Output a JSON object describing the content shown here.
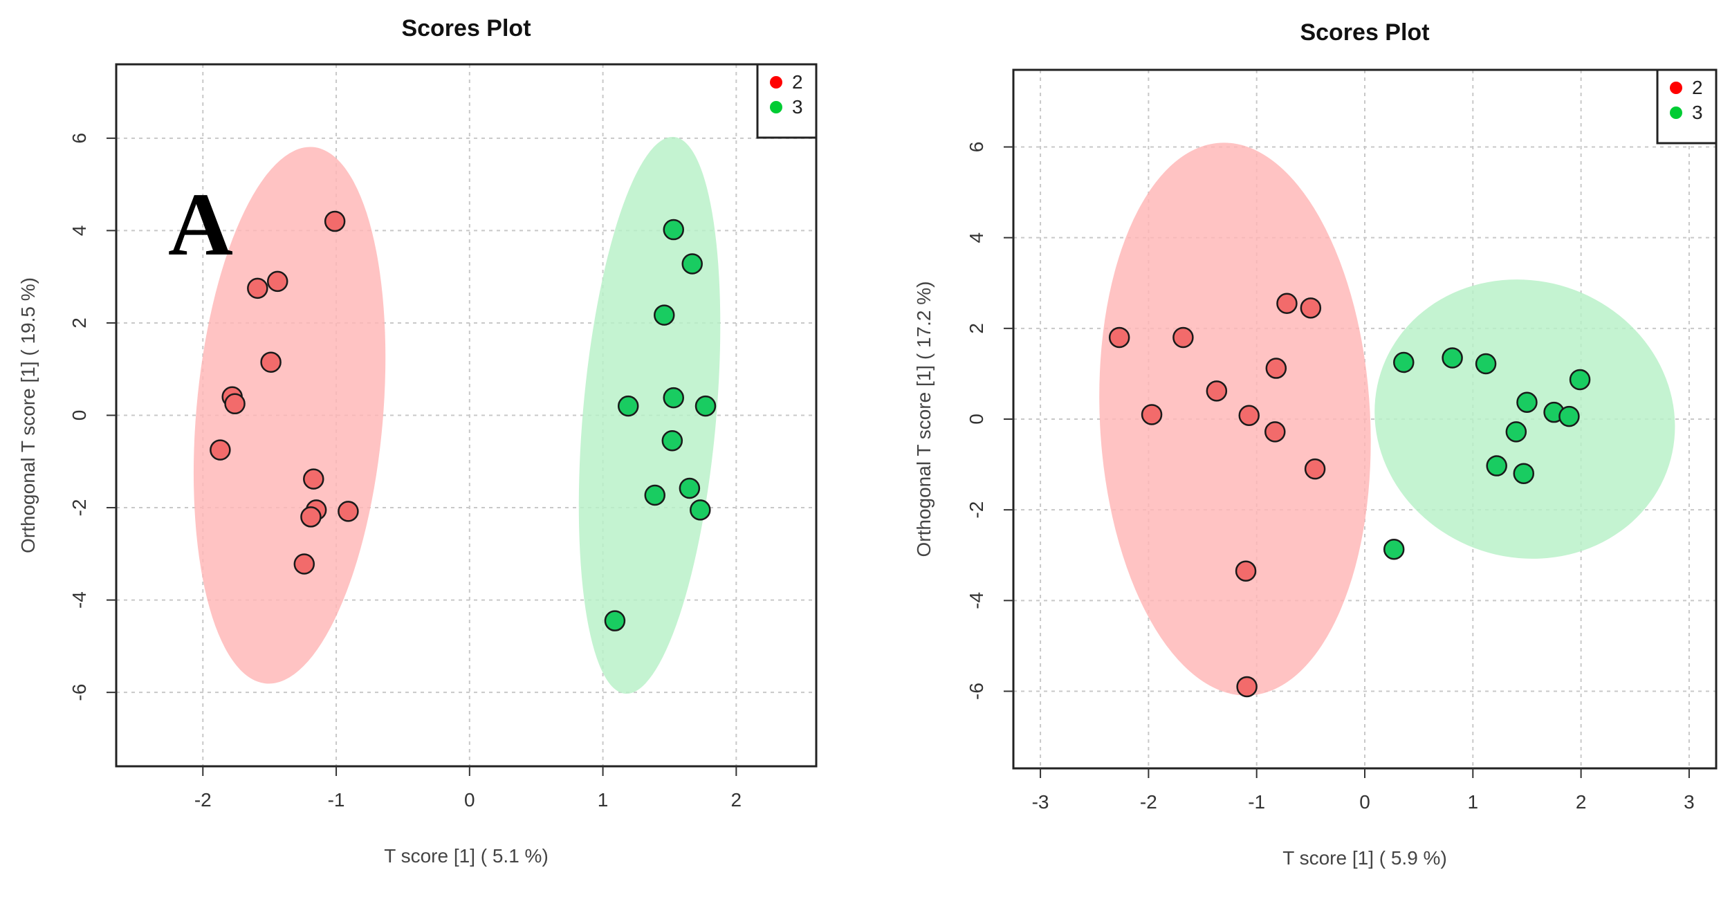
{
  "chart_data": [
    {
      "type": "scatter",
      "panel_label": "A",
      "title": "Scores Plot",
      "xlabel": "T score [1] ( 5.1 %)",
      "ylabel": "Orthogonal T score [1] ( 19.5 %)",
      "xlim": [
        -2.65,
        2.6
      ],
      "ylim": [
        -7.6,
        7.6
      ],
      "xticks": [
        -2,
        -1,
        0,
        1,
        2
      ],
      "yticks": [
        -6,
        -4,
        -2,
        0,
        2,
        4,
        6
      ],
      "grid": true,
      "legend_position": "top-right",
      "series": [
        {
          "name": "2",
          "color": "#ff0000",
          "fill": "#f26b6b",
          "ellipse": {
            "cx": -1.35,
            "cy": 0.0,
            "rx": 0.7,
            "ry": 5.83,
            "angle_deg": 5,
            "fill": "#ffb6b6"
          },
          "points": [
            {
              "x": -1.01,
              "y": 4.2
            },
            {
              "x": -1.59,
              "y": 2.75
            },
            {
              "x": -1.44,
              "y": 2.9
            },
            {
              "x": -1.49,
              "y": 1.15
            },
            {
              "x": -1.78,
              "y": 0.4
            },
            {
              "x": -1.76,
              "y": 0.25
            },
            {
              "x": -1.87,
              "y": -0.75
            },
            {
              "x": -1.17,
              "y": -1.38
            },
            {
              "x": -1.15,
              "y": -2.05
            },
            {
              "x": -1.19,
              "y": -2.2
            },
            {
              "x": -0.91,
              "y": -2.08
            },
            {
              "x": -1.24,
              "y": -3.22
            }
          ]
        },
        {
          "name": "3",
          "color": "#00cc33",
          "fill": "#19cc61",
          "ellipse": {
            "cx": 1.35,
            "cy": 0.0,
            "rx": 0.5,
            "ry": 6.05,
            "angle_deg": 5,
            "fill": "#b7f0c7"
          },
          "points": [
            {
              "x": 1.53,
              "y": 4.02
            },
            {
              "x": 1.67,
              "y": 3.28
            },
            {
              "x": 1.46,
              "y": 2.17
            },
            {
              "x": 1.53,
              "y": 0.38
            },
            {
              "x": 1.77,
              "y": 0.2
            },
            {
              "x": 1.19,
              "y": 0.2
            },
            {
              "x": 1.52,
              "y": -0.55
            },
            {
              "x": 1.65,
              "y": -1.58
            },
            {
              "x": 1.39,
              "y": -1.73
            },
            {
              "x": 1.73,
              "y": -2.05
            },
            {
              "x": 1.09,
              "y": -4.45
            }
          ]
        }
      ]
    },
    {
      "type": "scatter",
      "title": "Scores Plot",
      "xlabel": "T score [1] ( 5.9 %)",
      "ylabel": "Orthogonal T score [1] ( 17.2 %)",
      "xlim": [
        -3.25,
        3.25
      ],
      "ylim": [
        -7.7,
        7.7
      ],
      "xticks": [
        -3,
        -2,
        -1,
        0,
        1,
        2,
        3
      ],
      "yticks": [
        -6,
        -4,
        -2,
        0,
        2,
        4,
        6
      ],
      "grid": true,
      "legend_position": "top-right",
      "series": [
        {
          "name": "2",
          "color": "#ff0000",
          "fill": "#f26b6b",
          "ellipse": {
            "cx": -1.2,
            "cy": 0.0,
            "rx": 1.25,
            "ry": 6.1,
            "angle_deg": -3,
            "fill": "#ffb6b6"
          },
          "points": [
            {
              "x": -2.27,
              "y": 1.8
            },
            {
              "x": -1.68,
              "y": 1.8
            },
            {
              "x": -1.97,
              "y": 0.1
            },
            {
              "x": -1.37,
              "y": 0.62
            },
            {
              "x": -0.72,
              "y": 2.55
            },
            {
              "x": -0.5,
              "y": 2.45
            },
            {
              "x": -0.82,
              "y": 1.12
            },
            {
              "x": -1.07,
              "y": 0.08
            },
            {
              "x": -0.83,
              "y": -0.28
            },
            {
              "x": -0.46,
              "y": -1.1
            },
            {
              "x": -1.1,
              "y": -3.35
            },
            {
              "x": -1.09,
              "y": -5.9
            }
          ]
        },
        {
          "name": "3",
          "color": "#00cc33",
          "fill": "#19cc61",
          "ellipse": {
            "cx": 1.48,
            "cy": 0.0,
            "rx": 1.4,
            "ry": 3.05,
            "angle_deg": 18,
            "fill": "#b7f0c7"
          },
          "points": [
            {
              "x": 0.36,
              "y": 1.25
            },
            {
              "x": 0.81,
              "y": 1.35
            },
            {
              "x": 1.12,
              "y": 1.22
            },
            {
              "x": 1.99,
              "y": 0.87
            },
            {
              "x": 1.5,
              "y": 0.37
            },
            {
              "x": 1.75,
              "y": 0.15
            },
            {
              "x": 1.89,
              "y": 0.06
            },
            {
              "x": 1.4,
              "y": -0.28
            },
            {
              "x": 1.22,
              "y": -1.03
            },
            {
              "x": 1.47,
              "y": -1.2
            },
            {
              "x": 0.27,
              "y": -2.87
            }
          ]
        }
      ]
    }
  ]
}
